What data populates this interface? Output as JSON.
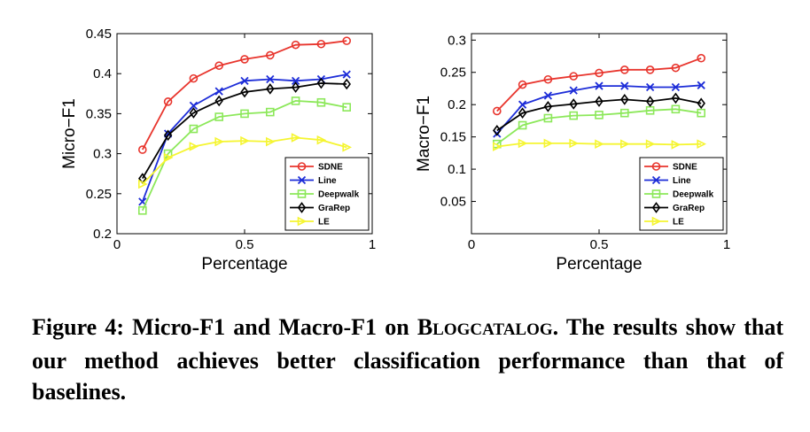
{
  "caption": {
    "label": "Figure 4:",
    "text_before_dataset": "Micro-F1 and Macro-F1 on",
    "dataset_first": "B",
    "dataset_rest": "LOGCATALOG",
    "text_after_dataset": ". The results show that our method achieves better classification performance than that of baselines."
  },
  "colors": {
    "SDNE": "#e8352d",
    "Line": "#1d2dd8",
    "Deepwalk": "#8ce85a",
    "GraRep": "#000000",
    "LE": "#f5f531"
  },
  "chart_data": [
    {
      "type": "line",
      "xlabel": "Percentage",
      "ylabel": "Micro−F1",
      "xlim": [
        0,
        1
      ],
      "ylim": [
        0.2,
        0.45
      ],
      "xticks": [
        "0",
        "0.5",
        "1"
      ],
      "yticks": [
        "0.2",
        "0.25",
        "0.3",
        "0.35",
        "0.4",
        "0.45"
      ],
      "x": [
        0.1,
        0.2,
        0.3,
        0.4,
        0.5,
        0.6,
        0.7,
        0.8,
        0.9
      ],
      "legend": "bottom-right",
      "series": [
        {
          "name": "SDNE",
          "marker": "circle",
          "values": [
            0.305,
            0.365,
            0.394,
            0.41,
            0.418,
            0.423,
            0.436,
            0.437,
            0.441
          ]
        },
        {
          "name": "Line",
          "marker": "x",
          "values": [
            0.24,
            0.325,
            0.36,
            0.378,
            0.391,
            0.393,
            0.391,
            0.393,
            0.399
          ]
        },
        {
          "name": "Deepwalk",
          "marker": "square",
          "values": [
            0.229,
            0.3,
            0.331,
            0.346,
            0.35,
            0.352,
            0.366,
            0.364,
            0.358
          ]
        },
        {
          "name": "GraRep",
          "marker": "diamond",
          "values": [
            0.269,
            0.323,
            0.351,
            0.366,
            0.377,
            0.381,
            0.383,
            0.388,
            0.387
          ]
        },
        {
          "name": "LE",
          "marker": "triangle-right",
          "values": [
            0.262,
            0.295,
            0.309,
            0.315,
            0.316,
            0.315,
            0.32,
            0.317,
            0.308
          ]
        }
      ]
    },
    {
      "type": "line",
      "xlabel": "Percentage",
      "ylabel": "Macro−F1",
      "xlim": [
        0,
        1
      ],
      "ylim": [
        0,
        0.31
      ],
      "xticks": [
        "0",
        "0.5",
        "1"
      ],
      "yticks": [
        "0.05",
        "0.1",
        "0.15",
        "0.2",
        "0.25",
        "0.3"
      ],
      "x": [
        0.1,
        0.2,
        0.3,
        0.4,
        0.5,
        0.6,
        0.7,
        0.8,
        0.9
      ],
      "legend": "bottom-right",
      "series": [
        {
          "name": "SDNE",
          "marker": "circle",
          "values": [
            0.19,
            0.231,
            0.239,
            0.244,
            0.249,
            0.254,
            0.254,
            0.257,
            0.272
          ]
        },
        {
          "name": "Line",
          "marker": "x",
          "values": [
            0.155,
            0.2,
            0.214,
            0.222,
            0.229,
            0.229,
            0.227,
            0.227,
            0.23
          ]
        },
        {
          "name": "Deepwalk",
          "marker": "square",
          "values": [
            0.139,
            0.168,
            0.179,
            0.183,
            0.184,
            0.187,
            0.191,
            0.193,
            0.187
          ]
        },
        {
          "name": "GraRep",
          "marker": "diamond",
          "values": [
            0.16,
            0.187,
            0.197,
            0.201,
            0.205,
            0.208,
            0.205,
            0.21,
            0.202
          ]
        },
        {
          "name": "LE",
          "marker": "triangle-right",
          "values": [
            0.135,
            0.14,
            0.14,
            0.14,
            0.139,
            0.139,
            0.139,
            0.138,
            0.139
          ]
        }
      ]
    }
  ]
}
